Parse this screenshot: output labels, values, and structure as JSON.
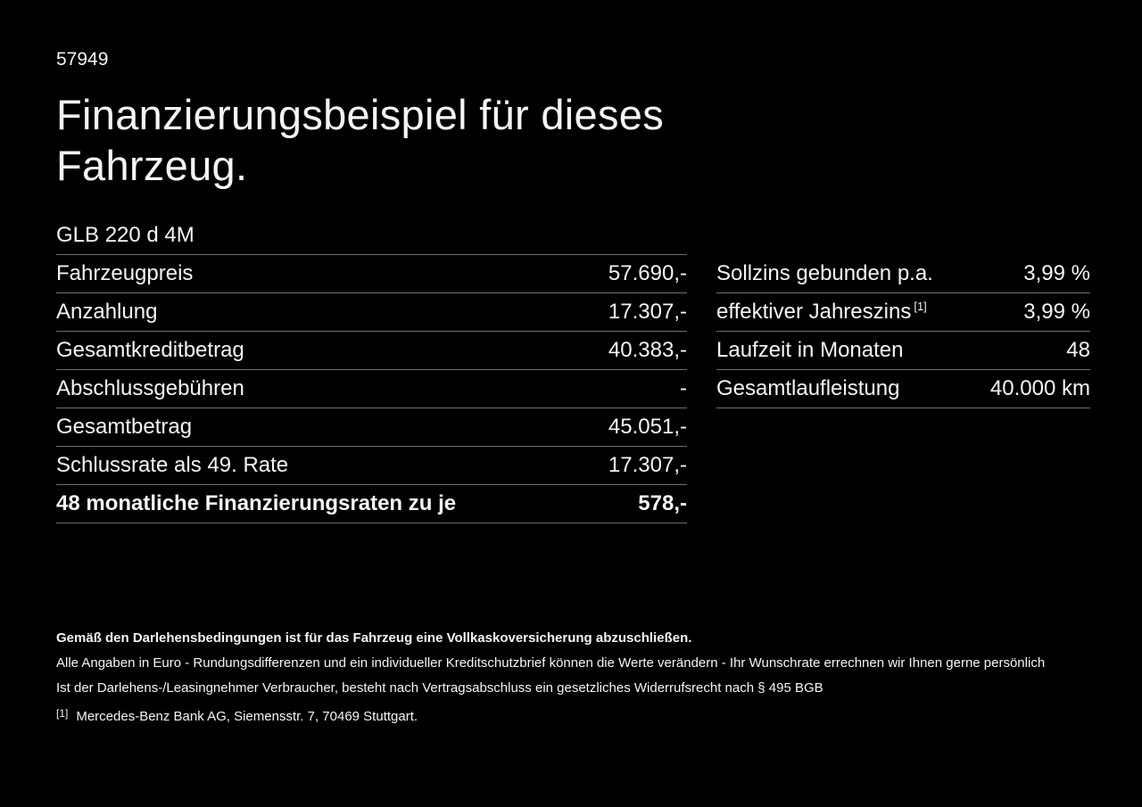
{
  "page": {
    "doc_number": "57949",
    "title": "Finanzierungsbeispiel für dieses Fahrzeug.",
    "model": "GLB 220 d 4M"
  },
  "colors": {
    "background": "#000000",
    "text": "#f5f5f5",
    "divider": "#6e6e6e"
  },
  "finance_table": {
    "rows": [
      {
        "label": "Fahrzeugpreis",
        "value": "57.690,-"
      },
      {
        "label": "Anzahlung",
        "value": "17.307,-"
      },
      {
        "label": "Gesamtkreditbetrag",
        "value": "40.383,-"
      },
      {
        "label": "Abschlussgebühren",
        "value": "-"
      },
      {
        "label": "Gesamtbetrag",
        "value": "45.051,-"
      },
      {
        "label": "Schlussrate als 49. Rate",
        "value": "17.307,-"
      },
      {
        "label": "48 monatliche Finanzierungsraten zu je",
        "value": "578,-"
      }
    ]
  },
  "conditions_table": {
    "rows": [
      {
        "label": "Sollzins gebunden p.a.",
        "value": "3,99 %"
      },
      {
        "label": "effektiver Jahreszins",
        "sup": "[1]",
        "value": "3,99 %"
      },
      {
        "label": "Laufzeit in Monaten",
        "value": "48"
      },
      {
        "label": "Gesamtlaufleistung",
        "value": "40.000 km"
      }
    ]
  },
  "footnotes": {
    "insurance": "Gemäß den Darlehensbedingungen ist für das Fahrzeug eine Vollkaskoversicherung abzuschließen.",
    "line1": "Alle Angaben in Euro - Rundungsdifferenzen und ein individueller Kreditschutzbrief können die Werte verändern - Ihr Wunschrate errechnen wir Ihnen gerne persönlich",
    "line2": "Ist der Darlehens-/Leasingnehmer Verbraucher, besteht nach Vertragsabschluss ein gesetzliches Widerrufsrecht nach § 495 BGB",
    "ref_marker": "[1]",
    "ref_text": "Mercedes-Benz Bank AG, Siemensstr. 7, 70469 Stuttgart."
  }
}
